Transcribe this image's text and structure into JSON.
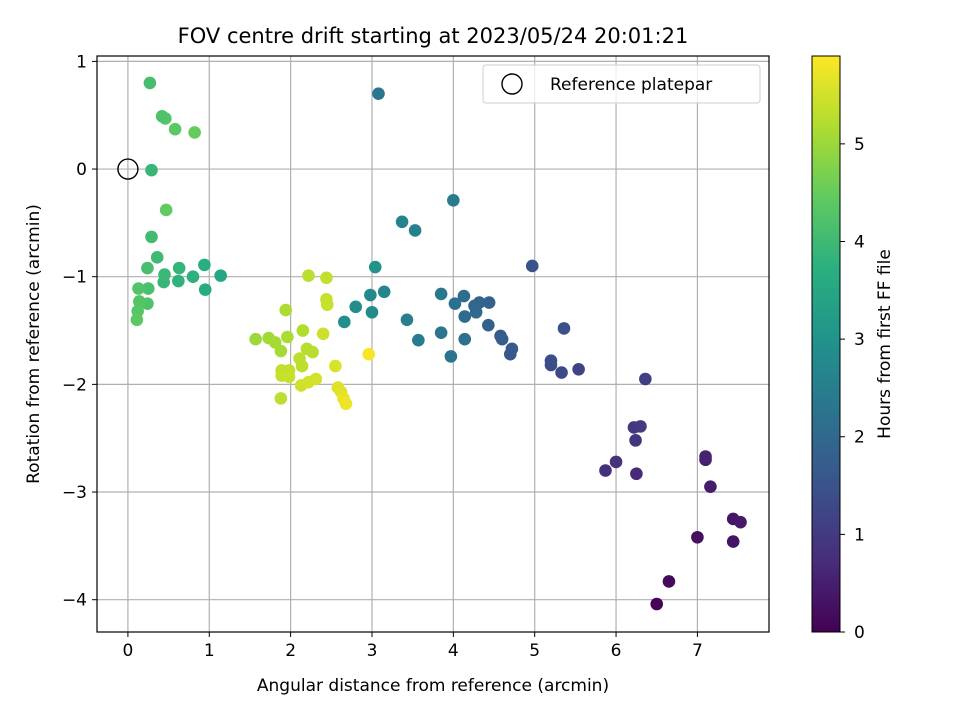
{
  "chart_data": {
    "type": "scatter",
    "title": "FOV centre drift starting at 2023/05/24 20:01:21",
    "xlabel": "Angular distance from reference (arcmin)",
    "ylabel": "Rotation from reference (arcmin)",
    "xlim": [
      -0.38,
      7.88
    ],
    "ylim": [
      -4.3,
      1.05
    ],
    "xticks": [
      0,
      1,
      2,
      3,
      4,
      5,
      6,
      7
    ],
    "xtick_labels": [
      "0",
      "1",
      "2",
      "3",
      "4",
      "5",
      "6",
      "7"
    ],
    "yticks": [
      1,
      0,
      -1,
      -2,
      -3,
      -4
    ],
    "ytick_labels": [
      "1",
      "0",
      "−1",
      "−2",
      "−3",
      "−4"
    ],
    "grid": true,
    "legend": {
      "label": "Reference platepar",
      "location": "top-right"
    },
    "reference_point": {
      "x": 0,
      "y": 0
    },
    "colorbar": {
      "label": "Hours from first FF file",
      "range": [
        0,
        5.9
      ],
      "ticks": [
        0,
        1,
        2,
        3,
        4,
        5
      ],
      "tick_labels": [
        "0",
        "1",
        "2",
        "3",
        "4",
        "5"
      ],
      "colormap": "viridis"
    },
    "points": [
      {
        "x": 6.5,
        "y": -4.04,
        "c": 0.05
      },
      {
        "x": 6.65,
        "y": -3.83,
        "c": 0.15
      },
      {
        "x": 7.0,
        "y": -3.42,
        "c": 0.25
      },
      {
        "x": 7.44,
        "y": -3.46,
        "c": 0.3
      },
      {
        "x": 7.44,
        "y": -3.25,
        "c": 0.35
      },
      {
        "x": 7.53,
        "y": -3.28,
        "c": 0.4
      },
      {
        "x": 7.16,
        "y": -2.95,
        "c": 0.45
      },
      {
        "x": 7.1,
        "y": -2.7,
        "c": 0.5
      },
      {
        "x": 7.1,
        "y": -2.67,
        "c": 0.55
      },
      {
        "x": 6.25,
        "y": -2.83,
        "c": 0.7
      },
      {
        "x": 5.87,
        "y": -2.8,
        "c": 0.8
      },
      {
        "x": 6.0,
        "y": -2.72,
        "c": 0.85
      },
      {
        "x": 6.24,
        "y": -2.52,
        "c": 0.9
      },
      {
        "x": 6.22,
        "y": -2.4,
        "c": 0.95
      },
      {
        "x": 6.3,
        "y": -2.39,
        "c": 1.0
      },
      {
        "x": 6.36,
        "y": -1.95,
        "c": 1.1
      },
      {
        "x": 5.54,
        "y": -1.86,
        "c": 1.2
      },
      {
        "x": 5.33,
        "y": -1.89,
        "c": 1.3
      },
      {
        "x": 5.2,
        "y": -1.82,
        "c": 1.35
      },
      {
        "x": 5.2,
        "y": -1.78,
        "c": 1.4
      },
      {
        "x": 5.36,
        "y": -1.48,
        "c": 1.45
      },
      {
        "x": 4.97,
        "y": -0.9,
        "c": 1.5
      },
      {
        "x": 4.7,
        "y": -1.72,
        "c": 1.6
      },
      {
        "x": 4.72,
        "y": -1.67,
        "c": 1.65
      },
      {
        "x": 4.58,
        "y": -1.55,
        "c": 1.7
      },
      {
        "x": 4.6,
        "y": -1.58,
        "c": 1.75
      },
      {
        "x": 4.43,
        "y": -1.45,
        "c": 1.8
      },
      {
        "x": 4.44,
        "y": -1.24,
        "c": 1.85
      },
      {
        "x": 4.32,
        "y": -1.24,
        "c": 1.9
      },
      {
        "x": 4.26,
        "y": -1.27,
        "c": 1.95
      },
      {
        "x": 4.28,
        "y": -1.33,
        "c": 2.0
      },
      {
        "x": 4.14,
        "y": -1.37,
        "c": 2.05
      },
      {
        "x": 4.13,
        "y": -1.18,
        "c": 2.1
      },
      {
        "x": 4.02,
        "y": -1.25,
        "c": 2.15
      },
      {
        "x": 4.14,
        "y": -1.58,
        "c": 2.2
      },
      {
        "x": 3.97,
        "y": -1.74,
        "c": 2.25
      },
      {
        "x": 3.85,
        "y": -1.52,
        "c": 2.3
      },
      {
        "x": 3.85,
        "y": -1.16,
        "c": 2.35
      },
      {
        "x": 4.0,
        "y": -0.29,
        "c": 2.4
      },
      {
        "x": 3.57,
        "y": -1.59,
        "c": 2.45
      },
      {
        "x": 3.43,
        "y": -1.4,
        "c": 2.5
      },
      {
        "x": 3.53,
        "y": -0.57,
        "c": 2.55
      },
      {
        "x": 3.37,
        "y": -0.49,
        "c": 2.6
      },
      {
        "x": 3.08,
        "y": 0.7,
        "c": 2.3
      },
      {
        "x": 3.15,
        "y": -1.14,
        "c": 2.7
      },
      {
        "x": 2.98,
        "y": -1.17,
        "c": 2.75
      },
      {
        "x": 3.0,
        "y": -1.33,
        "c": 2.8
      },
      {
        "x": 2.8,
        "y": -1.28,
        "c": 2.85
      },
      {
        "x": 2.66,
        "y": -1.42,
        "c": 2.9
      },
      {
        "x": 3.04,
        "y": -0.91,
        "c": 3.0
      },
      {
        "x": 1.14,
        "y": -0.99,
        "c": 3.5
      },
      {
        "x": 0.95,
        "y": -1.12,
        "c": 3.6
      },
      {
        "x": 0.94,
        "y": -0.89,
        "c": 3.7
      },
      {
        "x": 0.8,
        "y": -1.0,
        "c": 3.75
      },
      {
        "x": 0.62,
        "y": -1.04,
        "c": 3.8
      },
      {
        "x": 0.63,
        "y": -0.92,
        "c": 3.85
      },
      {
        "x": 0.44,
        "y": -1.05,
        "c": 3.9
      },
      {
        "x": 0.45,
        "y": -0.98,
        "c": 3.95
      },
      {
        "x": 0.36,
        "y": -0.82,
        "c": 4.0
      },
      {
        "x": 0.29,
        "y": -0.63,
        "c": 4.05
      },
      {
        "x": 0.24,
        "y": -0.92,
        "c": 4.1
      },
      {
        "x": 0.25,
        "y": -1.11,
        "c": 4.15
      },
      {
        "x": 0.24,
        "y": -1.25,
        "c": 4.2
      },
      {
        "x": 0.13,
        "y": -1.11,
        "c": 4.25
      },
      {
        "x": 0.14,
        "y": -1.23,
        "c": 4.3
      },
      {
        "x": 0.12,
        "y": -1.32,
        "c": 4.35
      },
      {
        "x": 0.11,
        "y": -1.4,
        "c": 4.4
      },
      {
        "x": 0.47,
        "y": -0.38,
        "c": 4.45
      },
      {
        "x": 0.29,
        "y": -0.01,
        "c": 3.9
      },
      {
        "x": 0.82,
        "y": 0.34,
        "c": 4.5
      },
      {
        "x": 0.58,
        "y": 0.37,
        "c": 4.4
      },
      {
        "x": 0.46,
        "y": 0.47,
        "c": 4.3
      },
      {
        "x": 0.42,
        "y": 0.49,
        "c": 4.2
      },
      {
        "x": 0.27,
        "y": 0.8,
        "c": 4.1
      },
      {
        "x": 1.57,
        "y": -1.58,
        "c": 5.0
      },
      {
        "x": 1.73,
        "y": -1.57,
        "c": 5.05
      },
      {
        "x": 1.81,
        "y": -1.61,
        "c": 5.1
      },
      {
        "x": 1.88,
        "y": -1.69,
        "c": 5.1
      },
      {
        "x": 1.94,
        "y": -1.31,
        "c": 5.15
      },
      {
        "x": 1.96,
        "y": -1.56,
        "c": 5.15
      },
      {
        "x": 2.15,
        "y": -1.5,
        "c": 5.2
      },
      {
        "x": 2.2,
        "y": -1.67,
        "c": 5.25
      },
      {
        "x": 2.27,
        "y": -1.7,
        "c": 5.25
      },
      {
        "x": 2.11,
        "y": -1.76,
        "c": 5.3
      },
      {
        "x": 2.14,
        "y": -1.83,
        "c": 5.3
      },
      {
        "x": 1.98,
        "y": -1.87,
        "c": 5.35
      },
      {
        "x": 1.89,
        "y": -1.87,
        "c": 5.35
      },
      {
        "x": 1.89,
        "y": -1.92,
        "c": 5.4
      },
      {
        "x": 1.98,
        "y": -1.93,
        "c": 5.4
      },
      {
        "x": 1.88,
        "y": -2.13,
        "c": 5.3
      },
      {
        "x": 2.13,
        "y": -2.01,
        "c": 5.45
      },
      {
        "x": 2.22,
        "y": -1.98,
        "c": 5.5
      },
      {
        "x": 2.31,
        "y": -1.95,
        "c": 5.5
      },
      {
        "x": 2.4,
        "y": -1.53,
        "c": 5.45
      },
      {
        "x": 2.44,
        "y": -1.21,
        "c": 5.4
      },
      {
        "x": 2.45,
        "y": -1.26,
        "c": 5.4
      },
      {
        "x": 2.44,
        "y": -1.01,
        "c": 5.35
      },
      {
        "x": 2.22,
        "y": -0.99,
        "c": 5.3
      },
      {
        "x": 2.55,
        "y": -1.83,
        "c": 5.55
      },
      {
        "x": 2.58,
        "y": -2.03,
        "c": 5.6
      },
      {
        "x": 2.62,
        "y": -2.07,
        "c": 5.65
      },
      {
        "x": 2.65,
        "y": -2.13,
        "c": 5.7
      },
      {
        "x": 2.68,
        "y": -2.18,
        "c": 5.75
      },
      {
        "x": 2.96,
        "y": -1.72,
        "c": 5.85
      }
    ]
  }
}
